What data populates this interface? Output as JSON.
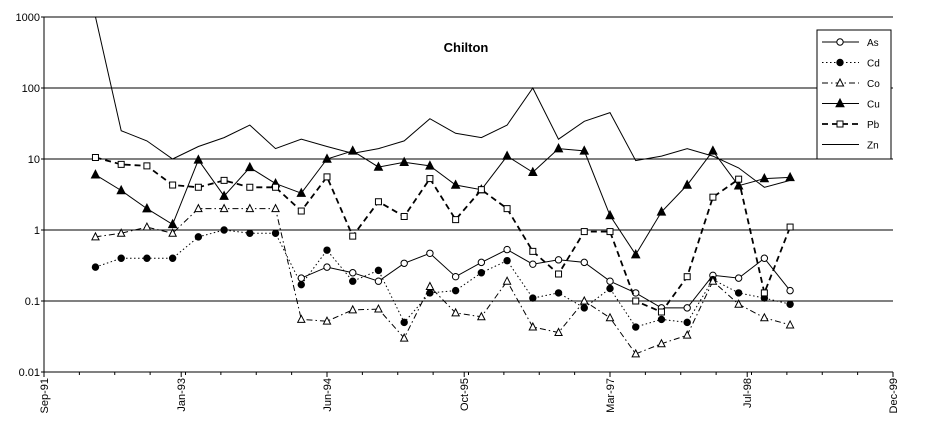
{
  "chart_data": {
    "type": "line",
    "title": "Chilton",
    "xlabel": "",
    "ylabel": "",
    "y_scale": "log",
    "ylim": [
      0.01,
      1000
    ],
    "y_ticks": [
      "0.01",
      "0.1",
      "1",
      "10",
      "100",
      "1000"
    ],
    "xlim": [
      "1991-09",
      "1999-12"
    ],
    "x_ticks": [
      "Sep-91",
      "Jan-93",
      "Jun-94",
      "Oct-95",
      "Mar-97",
      "Jul-98",
      "Dec-99"
    ],
    "grid": "horizontal major lines",
    "legend_position": "top-right",
    "x": [
      "1992-03",
      "1992-06",
      "1992-09",
      "1992-12",
      "1993-03",
      "1993-06",
      "1993-09",
      "1993-12",
      "1994-03",
      "1994-06",
      "1994-09",
      "1994-12",
      "1995-03",
      "1995-06",
      "1995-09",
      "1995-12",
      "1996-03",
      "1996-06",
      "1996-09",
      "1996-12",
      "1997-03",
      "1997-06",
      "1997-09",
      "1997-12",
      "1998-03",
      "1998-06",
      "1998-09",
      "1998-12"
    ],
    "series": [
      {
        "name": "As",
        "line": "solid",
        "marker": "open-circle",
        "values": [
          null,
          null,
          null,
          null,
          null,
          null,
          null,
          null,
          0.21,
          0.3,
          0.25,
          0.19,
          0.34,
          0.47,
          0.22,
          0.35,
          0.53,
          0.33,
          0.38,
          0.35,
          0.19,
          0.13,
          0.08,
          0.08,
          0.23,
          0.21,
          0.4,
          0.14
        ]
      },
      {
        "name": "Cd",
        "line": "dotted",
        "marker": "filled-circle",
        "values": [
          0.3,
          0.4,
          0.4,
          0.4,
          0.8,
          1.0,
          0.9,
          0.9,
          0.17,
          0.52,
          0.19,
          0.27,
          0.05,
          0.13,
          0.14,
          0.25,
          0.37,
          0.11,
          0.13,
          0.08,
          0.15,
          0.043,
          0.055,
          0.05,
          0.2,
          0.13,
          0.11,
          0.09
        ]
      },
      {
        "name": "Co",
        "line": "dash-dot",
        "marker": "open-triangle",
        "values": [
          0.8,
          0.9,
          1.1,
          0.9,
          2.0,
          2.0,
          2.0,
          2.0,
          0.055,
          0.052,
          0.075,
          0.077,
          0.03,
          0.16,
          0.068,
          0.06,
          0.19,
          0.043,
          0.036,
          0.1,
          0.058,
          0.018,
          0.025,
          0.033,
          0.19,
          0.09,
          0.058,
          0.046
        ]
      },
      {
        "name": "Cu",
        "line": "solid",
        "marker": "filled-triangle",
        "values": [
          6,
          3.6,
          2.0,
          1.2,
          9.7,
          3.0,
          7.6,
          4.5,
          3.3,
          10,
          13,
          7.7,
          9.0,
          8.0,
          4.3,
          3.7,
          11,
          6.5,
          14,
          13,
          1.6,
          0.45,
          1.8,
          4.3,
          13,
          4.2,
          5.3,
          5.5
        ]
      },
      {
        "name": "Pb",
        "line": "dashed",
        "marker": "open-square",
        "values": [
          10.5,
          8.4,
          8.0,
          4.3,
          4.0,
          5.0,
          4.0,
          4.0,
          1.85,
          5.6,
          0.82,
          2.5,
          1.55,
          5.3,
          1.4,
          3.7,
          2.0,
          0.5,
          0.24,
          0.95,
          0.95,
          0.1,
          0.07,
          0.22,
          2.9,
          5.2,
          0.13,
          1.1
        ]
      },
      {
        "name": "Zn",
        "line": "solid",
        "marker": "none",
        "x": [
          "1992-03",
          "1992-06",
          "1992-09",
          "1992-12",
          "1993-03",
          "1993-06",
          "1993-09",
          "1993-12",
          "1994-03",
          "1994-06",
          "1994-09",
          "1994-12",
          "1995-03",
          "1995-06",
          "1995-09",
          "1995-12",
          "1996-03",
          "1996-06",
          "1996-09",
          "1996-12",
          "1997-03",
          "1997-06",
          "1997-09",
          "1997-12",
          "1998-03",
          "1998-06",
          "1998-09",
          "1998-12"
        ],
        "values": [
          1000,
          25,
          18,
          10,
          15,
          20,
          30,
          14,
          19,
          15,
          12,
          14,
          18,
          37,
          23,
          20,
          30,
          100,
          19,
          34,
          45,
          9.5,
          11,
          14,
          11,
          7.5,
          4.0,
          5.0
        ]
      }
    ]
  }
}
